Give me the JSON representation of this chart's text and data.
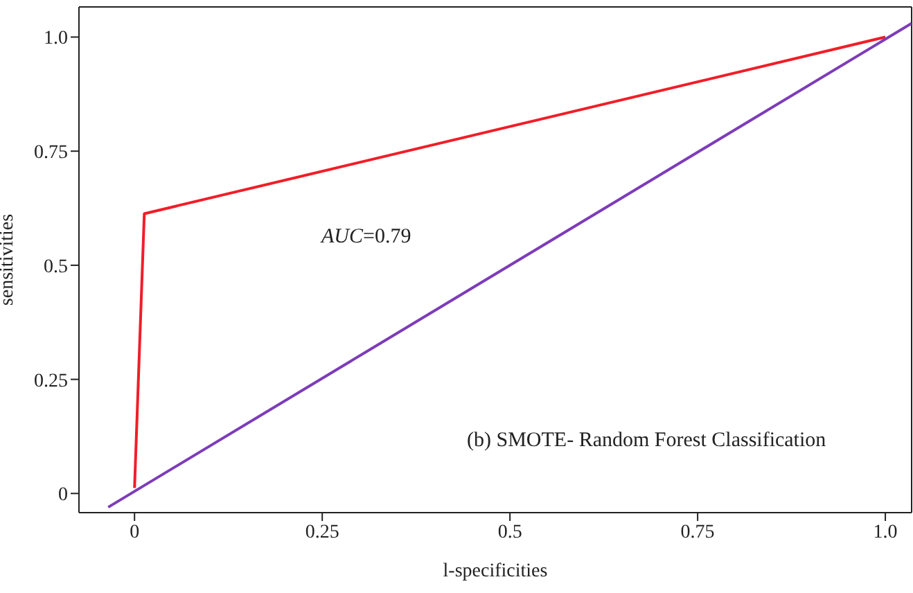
{
  "chart_data": {
    "type": "line",
    "xlabel": "l-specificities",
    "ylabel": "sensitivities",
    "xlim": [
      -0.074,
      1.035
    ],
    "ylim": [
      -0.042,
      1.066
    ],
    "xticks": [
      0,
      0.25,
      0.5,
      0.75,
      {
        "value": 1,
        "label": "1.0"
      }
    ],
    "yticks": [
      0,
      0.25,
      0.5,
      0.75,
      {
        "value": 1,
        "label": "1.0"
      }
    ],
    "grid": false,
    "legend": false,
    "marker": "none",
    "line_style": "solid",
    "series": [
      {
        "color": "#f01e28",
        "x": [
          0,
          0.013,
          1
        ],
        "values": [
          0.012,
          0.613,
          1
        ]
      },
      {
        "color": "#7d3cb8",
        "x": [
          -0.035,
          1.035
        ],
        "values": [
          -0.03,
          1.03
        ]
      }
    ],
    "annotations": [
      "AUC=0.79",
      "(b) SMOTE- Random Forest Classification"
    ]
  }
}
